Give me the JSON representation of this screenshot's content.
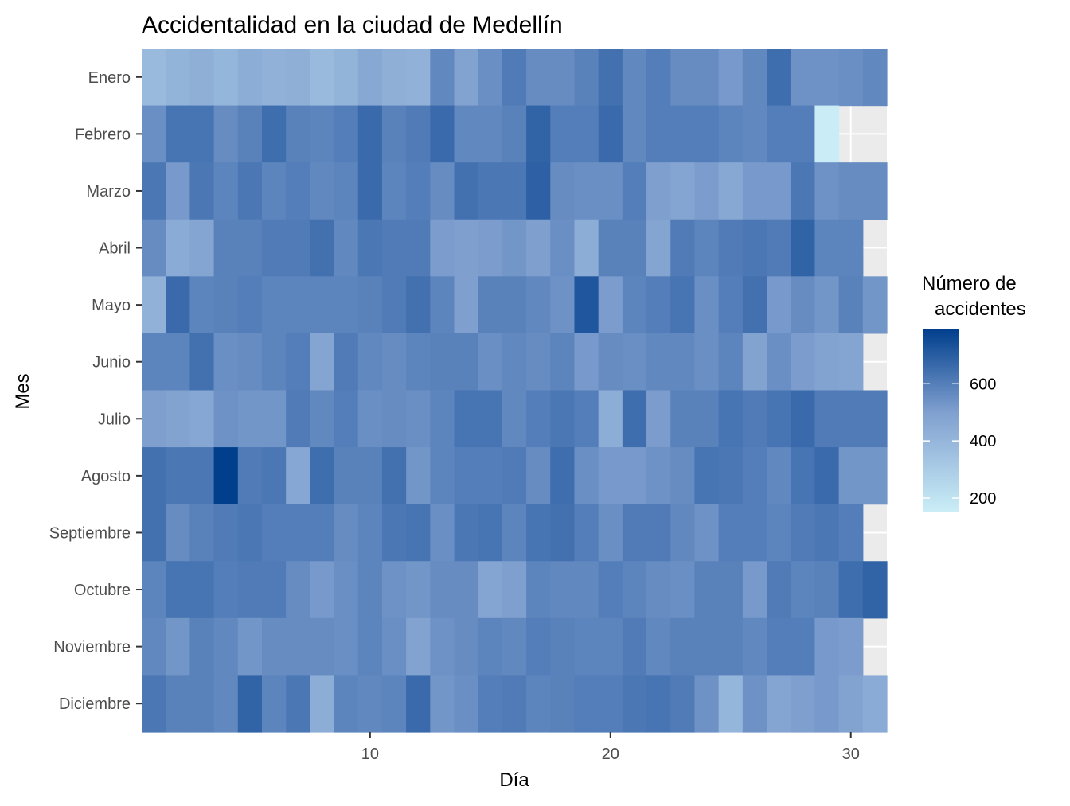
{
  "chart_data": {
    "type": "heatmap",
    "title": "Accidentalidad en la ciudad de Medellín",
    "xlabel": "Día",
    "ylabel": "Mes",
    "x_ticks": [
      10,
      20,
      30
    ],
    "xlim": [
      0.5,
      31.5
    ],
    "legend": {
      "title_line1": "Número de",
      "title_line2": "accidentes",
      "ticks": [
        200,
        400,
        600
      ],
      "range": [
        150,
        790
      ],
      "low_color": "#cbeef7",
      "high_color": "#013f8d",
      "placement": "right"
    },
    "background_color": "#ebebeb",
    "grid_color": "#ffffff",
    "days": [
      1,
      2,
      3,
      4,
      5,
      6,
      7,
      8,
      9,
      10,
      11,
      12,
      13,
      14,
      15,
      16,
      17,
      18,
      19,
      20,
      21,
      22,
      23,
      24,
      25,
      26,
      27,
      28,
      29,
      30,
      31
    ],
    "months": [
      "Enero",
      "Febrero",
      "Marzo",
      "Abril",
      "Mayo",
      "Junio",
      "Julio",
      "Agosto",
      "Septiembre",
      "Octubre",
      "Noviembre",
      "Diciembre"
    ],
    "values": [
      [
        380,
        410,
        430,
        400,
        440,
        420,
        430,
        380,
        410,
        460,
        430,
        420,
        570,
        490,
        550,
        610,
        560,
        560,
        590,
        640,
        570,
        600,
        560,
        560,
        520,
        570,
        650,
        540,
        540,
        550,
        570
      ],
      [
        550,
        630,
        630,
        560,
        590,
        650,
        590,
        580,
        600,
        660,
        590,
        610,
        660,
        570,
        570,
        590,
        680,
        600,
        600,
        660,
        570,
        600,
        600,
        600,
        580,
        570,
        600,
        600,
        160,
        null,
        null
      ],
      [
        620,
        520,
        620,
        580,
        620,
        580,
        600,
        570,
        580,
        660,
        580,
        600,
        560,
        640,
        620,
        620,
        690,
        560,
        550,
        550,
        600,
        500,
        480,
        510,
        460,
        520,
        520,
        620,
        540,
        560,
        560
      ],
      [
        560,
        450,
        480,
        590,
        590,
        610,
        610,
        640,
        570,
        620,
        610,
        610,
        510,
        500,
        510,
        530,
        500,
        550,
        440,
        590,
        590,
        480,
        610,
        580,
        610,
        620,
        610,
        680,
        580,
        580,
        null
      ],
      [
        420,
        660,
        580,
        590,
        600,
        580,
        580,
        580,
        580,
        590,
        610,
        640,
        580,
        500,
        590,
        590,
        570,
        540,
        720,
        510,
        580,
        600,
        630,
        550,
        600,
        640,
        520,
        560,
        530,
        590,
        530
      ],
      [
        580,
        580,
        640,
        550,
        560,
        580,
        600,
        480,
        610,
        570,
        560,
        580,
        590,
        590,
        550,
        570,
        560,
        580,
        520,
        560,
        550,
        570,
        570,
        550,
        580,
        490,
        550,
        510,
        490,
        480,
        null
      ],
      [
        500,
        490,
        470,
        540,
        530,
        530,
        610,
        570,
        600,
        550,
        560,
        550,
        580,
        630,
        630,
        570,
        600,
        620,
        600,
        440,
        650,
        510,
        590,
        590,
        630,
        610,
        630,
        660,
        610,
        610,
        610
      ],
      [
        640,
        620,
        620,
        790,
        610,
        620,
        470,
        650,
        590,
        590,
        640,
        530,
        580,
        600,
        600,
        610,
        560,
        650,
        550,
        520,
        520,
        540,
        560,
        630,
        620,
        600,
        570,
        630,
        660,
        530,
        530
      ],
      [
        640,
        560,
        590,
        610,
        620,
        600,
        600,
        600,
        560,
        580,
        620,
        630,
        550,
        620,
        630,
        580,
        630,
        640,
        600,
        550,
        610,
        610,
        570,
        540,
        600,
        600,
        580,
        610,
        620,
        600,
        null
      ],
      [
        580,
        630,
        630,
        600,
        610,
        610,
        560,
        520,
        550,
        580,
        540,
        530,
        560,
        560,
        480,
        500,
        580,
        570,
        570,
        600,
        580,
        560,
        550,
        590,
        590,
        520,
        610,
        580,
        590,
        650,
        680
      ],
      [
        570,
        530,
        590,
        570,
        530,
        560,
        560,
        560,
        550,
        580,
        550,
        490,
        540,
        560,
        580,
        570,
        600,
        590,
        580,
        580,
        610,
        570,
        590,
        590,
        590,
        570,
        600,
        600,
        520,
        510,
        null
      ],
      [
        620,
        590,
        590,
        570,
        680,
        580,
        620,
        440,
        580,
        570,
        580,
        660,
        530,
        550,
        600,
        610,
        580,
        590,
        600,
        600,
        620,
        630,
        610,
        540,
        400,
        540,
        480,
        500,
        520,
        490,
        450
      ]
    ]
  }
}
